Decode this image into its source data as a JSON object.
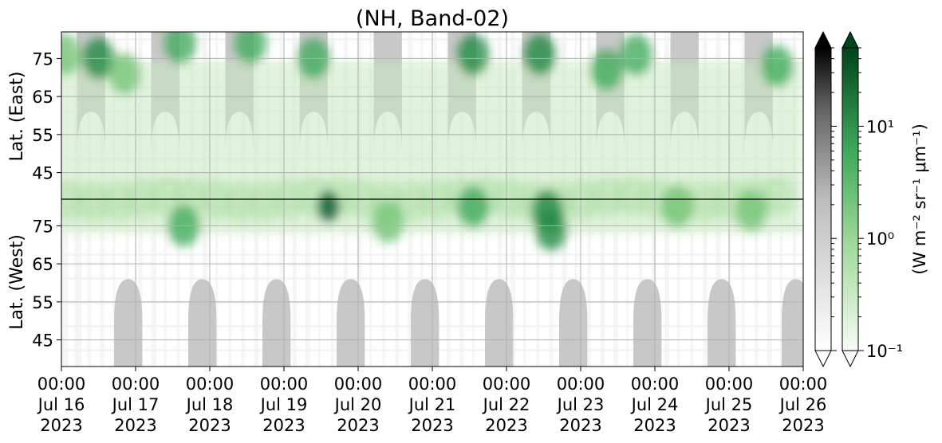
{
  "chart_data": {
    "type": "heatmap",
    "title": "(NH, Band-02)",
    "ylabel_top": "Lat. (East)",
    "ylabel_bottom": "Lat. (West)",
    "y_ticks_top": [
      45,
      55,
      65,
      75
    ],
    "y_ticks_bottom": [
      75,
      65,
      55,
      45
    ],
    "ylim_top": [
      38,
      82
    ],
    "ylim_bottom": [
      82,
      38
    ],
    "xlim": [
      "2023-07-16 00:00",
      "2023-07-26 00:00"
    ],
    "x_ticks": [
      {
        "time": "00:00",
        "date": "Jul 16",
        "year": "2023"
      },
      {
        "time": "00:00",
        "date": "Jul 17",
        "year": "2023"
      },
      {
        "time": "00:00",
        "date": "Jul 18",
        "year": "2023"
      },
      {
        "time": "00:00",
        "date": "Jul 19",
        "year": "2023"
      },
      {
        "time": "00:00",
        "date": "Jul 20",
        "year": "2023"
      },
      {
        "time": "00:00",
        "date": "Jul 21",
        "year": "2023"
      },
      {
        "time": "00:00",
        "date": "Jul 22",
        "year": "2023"
      },
      {
        "time": "00:00",
        "date": "Jul 23",
        "year": "2023"
      },
      {
        "time": "00:00",
        "date": "Jul 24",
        "year": "2023"
      },
      {
        "time": "00:00",
        "date": "Jul 25",
        "year": "2023"
      },
      {
        "time": "00:00",
        "date": "Jul 26",
        "year": "2023"
      }
    ],
    "grid": true,
    "colorbar": {
      "label": "(W m⁻² sr⁻¹ μm⁻¹)",
      "scale": "log",
      "range": [
        0.1,
        50
      ],
      "ticks": [
        {
          "value": 10,
          "label": "10¹"
        },
        {
          "value": 1,
          "label": "10⁰"
        },
        {
          "value": 0.1,
          "label": "10⁻¹"
        }
      ],
      "colormaps": [
        "Greys",
        "Greens"
      ],
      "extend": "both"
    },
    "night_mask": {
      "description": "gray daylight-gap regions",
      "color": "#c8c8c8",
      "east_day_centers": [
        0.4,
        1.4,
        2.4,
        3.4,
        4.4,
        5.4,
        6.4,
        7.4,
        8.4,
        9.4
      ],
      "west_day_centers": [
        0.9,
        1.9,
        2.9,
        3.9,
        4.9,
        5.9,
        6.9,
        7.9,
        8.9,
        9.9
      ],
      "max_lat": 61
    },
    "aurora_intensity_clusters": [
      {
        "day": 0.05,
        "lat_east": 76,
        "value": 1.5
      },
      {
        "day": 0.5,
        "lat_east": 75,
        "value": 4
      },
      {
        "day": 0.85,
        "lat_east": 71,
        "value": 1.5
      },
      {
        "day": 1.6,
        "lat_east": 79,
        "value": 3
      },
      {
        "day": 1.65,
        "lat_west": 75,
        "value": 3
      },
      {
        "day": 2.55,
        "lat_east": 79,
        "value": 2.5
      },
      {
        "day": 3.4,
        "lat_east": 75,
        "value": 3
      },
      {
        "day": 3.6,
        "lat_west": 80,
        "value": 20
      },
      {
        "day": 4.4,
        "lat_west": 76,
        "value": 2
      },
      {
        "day": 5.55,
        "lat_east": 76,
        "value": 4
      },
      {
        "day": 5.55,
        "lat_west": 80,
        "value": 3
      },
      {
        "day": 6.45,
        "lat_east": 76,
        "value": 5
      },
      {
        "day": 6.55,
        "lat_west": 79,
        "value": 6
      },
      {
        "day": 6.6,
        "lat_west": 74,
        "value": 5
      },
      {
        "day": 7.35,
        "lat_east": 72,
        "value": 3
      },
      {
        "day": 7.75,
        "lat_east": 76,
        "value": 2.5
      },
      {
        "day": 8.3,
        "lat_west": 80,
        "value": 2
      },
      {
        "day": 9.65,
        "lat_east": 73,
        "value": 3
      },
      {
        "day": 9.3,
        "lat_west": 79,
        "value": 2
      }
    ]
  }
}
